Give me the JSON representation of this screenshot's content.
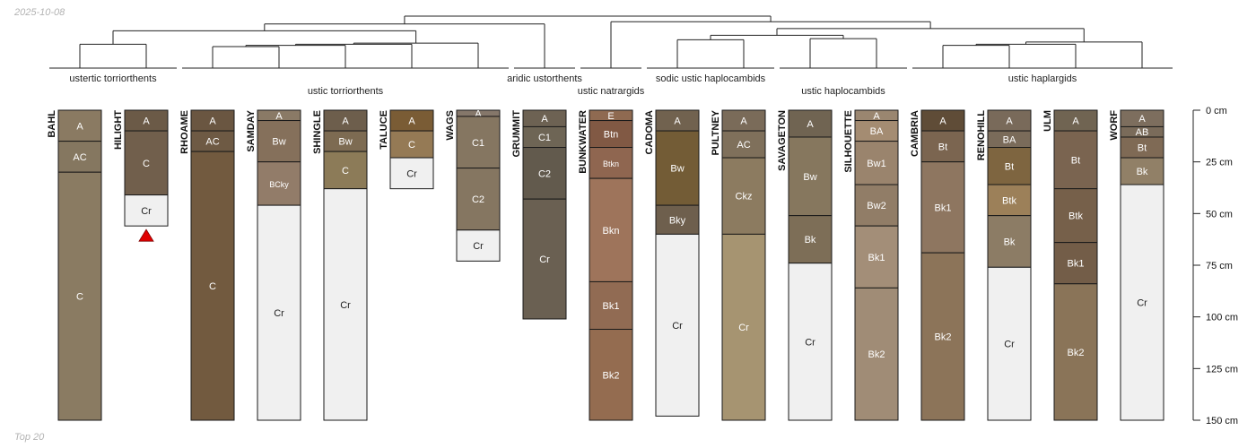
{
  "meta": {
    "date_stamp": "2025-10-08",
    "footer_note": "Top 20"
  },
  "chart_data": {
    "type": "soil-profile-sketch",
    "title": "",
    "depth_unit": "cm",
    "depth_range": [
      0,
      150
    ],
    "depth_ticks": [
      0,
      25,
      50,
      75,
      100,
      125,
      150
    ],
    "depth_tick_labels": [
      "0 cm",
      "25 cm",
      "50 cm",
      "75 cm",
      "100 cm",
      "125 cm",
      "150 cm"
    ],
    "group_labels": [
      {
        "text": "ustertic torriorthents",
        "members": [
          "BAHL",
          "HILIGHT"
        ]
      },
      {
        "text": "ustic torriorthents",
        "members": [
          "RHOAME",
          "SAMDAY",
          "SHINGLE",
          "TALUCE",
          "WAGS"
        ]
      },
      {
        "text": "aridic ustorthents",
        "members": [
          "GRUMMIT"
        ]
      },
      {
        "text": "ustic natrargids",
        "members": [
          "BUNKWATER"
        ]
      },
      {
        "text": "sodic ustic haplocambids",
        "members": [
          "CADOMA",
          "PULTNEY"
        ]
      },
      {
        "text": "ustic haplocambids",
        "members": [
          "SAVAGETON",
          "SILHOUETTE"
        ]
      },
      {
        "text": "ustic haplargids",
        "members": [
          "CAMBRIA",
          "RENOHILL",
          "ULM",
          "WORF"
        ]
      }
    ],
    "profiles": [
      {
        "name": "BAHL",
        "truncated": false,
        "horizons": [
          {
            "name": "A",
            "top": 0,
            "bottom": 15,
            "color": "#8a7a62"
          },
          {
            "name": "AC",
            "top": 15,
            "bottom": 30,
            "color": "#857760"
          },
          {
            "name": "C",
            "top": 30,
            "bottom": 150,
            "color": "#8a7b62"
          }
        ]
      },
      {
        "name": "HILIGHT",
        "truncated": true,
        "horizons": [
          {
            "name": "A",
            "top": 0,
            "bottom": 10,
            "color": "#6b5a47"
          },
          {
            "name": "C",
            "top": 10,
            "bottom": 41,
            "color": "#715f4c"
          },
          {
            "name": "Cr",
            "top": 41,
            "bottom": 56,
            "color": "#f0f0f0"
          }
        ]
      },
      {
        "name": "RHOAME",
        "truncated": false,
        "horizons": [
          {
            "name": "A",
            "top": 0,
            "bottom": 10,
            "color": "#6a5641"
          },
          {
            "name": "AC",
            "top": 10,
            "bottom": 20,
            "color": "#6e5a44"
          },
          {
            "name": "C",
            "top": 20,
            "bottom": 150,
            "color": "#725a3f"
          }
        ]
      },
      {
        "name": "SAMDAY",
        "truncated": false,
        "horizons": [
          {
            "name": "A",
            "top": 0,
            "bottom": 5,
            "color": "#8a7a66"
          },
          {
            "name": "Bw",
            "top": 5,
            "bottom": 25,
            "color": "#85705b"
          },
          {
            "name": "BCky",
            "top": 25,
            "bottom": 46,
            "color": "#927c69"
          },
          {
            "name": "Cr",
            "top": 46,
            "bottom": 150,
            "color": "#f0f0f0"
          }
        ]
      },
      {
        "name": "SHINGLE",
        "truncated": false,
        "horizons": [
          {
            "name": "A",
            "top": 0,
            "bottom": 10,
            "color": "#6d5e4c"
          },
          {
            "name": "Bw",
            "top": 10,
            "bottom": 20,
            "color": "#7d6b52"
          },
          {
            "name": "C",
            "top": 20,
            "bottom": 38,
            "color": "#8c7b58"
          },
          {
            "name": "Cr",
            "top": 38,
            "bottom": 150,
            "color": "#f0f0f0"
          }
        ]
      },
      {
        "name": "TALUCE",
        "truncated": false,
        "horizons": [
          {
            "name": "A",
            "top": 0,
            "bottom": 10,
            "color": "#7a5c35"
          },
          {
            "name": "C",
            "top": 10,
            "bottom": 23,
            "color": "#957a55"
          },
          {
            "name": "Cr",
            "top": 23,
            "bottom": 38,
            "color": "#f0f0f0"
          }
        ]
      },
      {
        "name": "WAGS",
        "truncated": false,
        "horizons": [
          {
            "name": "A",
            "top": 0,
            "bottom": 3,
            "color": "#85776a"
          },
          {
            "name": "C1",
            "top": 3,
            "bottom": 28,
            "color": "#857661"
          },
          {
            "name": "C2",
            "top": 28,
            "bottom": 58,
            "color": "#857661"
          },
          {
            "name": "Cr",
            "top": 58,
            "bottom": 73,
            "color": "#f0f0f0"
          }
        ]
      },
      {
        "name": "GRUMMIT",
        "truncated": false,
        "horizons": [
          {
            "name": "A",
            "top": 0,
            "bottom": 8,
            "color": "#6d6253"
          },
          {
            "name": "C1",
            "top": 8,
            "bottom": 18,
            "color": "#6e6555"
          },
          {
            "name": "C2",
            "top": 18,
            "bottom": 43,
            "color": "#625a4d"
          },
          {
            "name": "Cr",
            "top": 43,
            "bottom": 101,
            "color": "#6a6052"
          }
        ]
      },
      {
        "name": "BUNKWATER",
        "truncated": false,
        "horizons": [
          {
            "name": "E",
            "top": 0,
            "bottom": 5,
            "color": "#8f6a51"
          },
          {
            "name": "Btn",
            "top": 5,
            "bottom": 18,
            "color": "#815944"
          },
          {
            "name": "Btkn",
            "top": 18,
            "bottom": 33,
            "color": "#8f6650"
          },
          {
            "name": "Bkn",
            "top": 33,
            "bottom": 83,
            "color": "#9e745b"
          },
          {
            "name": "Bk1",
            "top": 83,
            "bottom": 106,
            "color": "#916b53"
          },
          {
            "name": "Bk2",
            "top": 106,
            "bottom": 150,
            "color": "#946c50"
          }
        ]
      },
      {
        "name": "CADOMA",
        "truncated": false,
        "horizons": [
          {
            "name": "A",
            "top": 0,
            "bottom": 10,
            "color": "#71624f"
          },
          {
            "name": "Bw",
            "top": 10,
            "bottom": 46,
            "color": "#735c36"
          },
          {
            "name": "Bky",
            "top": 46,
            "bottom": 60,
            "color": "#6e5f4d"
          },
          {
            "name": "Cr",
            "top": 60,
            "bottom": 148,
            "color": "#f0f0f0"
          }
        ]
      },
      {
        "name": "PULTNEY",
        "truncated": false,
        "horizons": [
          {
            "name": "A",
            "top": 0,
            "bottom": 10,
            "color": "#7a6b59"
          },
          {
            "name": "AC",
            "top": 10,
            "bottom": 23,
            "color": "#7f705b"
          },
          {
            "name": "Ckz",
            "top": 23,
            "bottom": 60,
            "color": "#8c7b60"
          },
          {
            "name": "Cr",
            "top": 60,
            "bottom": 150,
            "color": "#a69471"
          }
        ]
      },
      {
        "name": "SAVAGETON",
        "truncated": false,
        "horizons": [
          {
            "name": "A",
            "top": 0,
            "bottom": 13,
            "color": "#706452"
          },
          {
            "name": "Bw",
            "top": 13,
            "bottom": 51,
            "color": "#86775e"
          },
          {
            "name": "Bk",
            "top": 51,
            "bottom": 74,
            "color": "#7d6e57"
          },
          {
            "name": "Cr",
            "top": 74,
            "bottom": 150,
            "color": "#f0f0f0"
          }
        ]
      },
      {
        "name": "SILHOUETTE",
        "truncated": false,
        "horizons": [
          {
            "name": "A",
            "top": 0,
            "bottom": 5,
            "color": "#9a8670"
          },
          {
            "name": "BA",
            "top": 5,
            "bottom": 15,
            "color": "#a48c72"
          },
          {
            "name": "Bw1",
            "top": 15,
            "bottom": 36,
            "color": "#9a846d"
          },
          {
            "name": "Bw2",
            "top": 36,
            "bottom": 56,
            "color": "#917d67"
          },
          {
            "name": "Bk1",
            "top": 56,
            "bottom": 86,
            "color": "#a38e78"
          },
          {
            "name": "Bk2",
            "top": 86,
            "bottom": 150,
            "color": "#a08c76"
          }
        ]
      },
      {
        "name": "CAMBRIA",
        "truncated": false,
        "horizons": [
          {
            "name": "A",
            "top": 0,
            "bottom": 10,
            "color": "#5f4c37"
          },
          {
            "name": "Bt",
            "top": 10,
            "bottom": 25,
            "color": "#7b6550"
          },
          {
            "name": "Bk1",
            "top": 25,
            "bottom": 69,
            "color": "#8e7660"
          },
          {
            "name": "Bk2",
            "top": 69,
            "bottom": 150,
            "color": "#8c7459"
          }
        ]
      },
      {
        "name": "RENOHILL",
        "truncated": false,
        "horizons": [
          {
            "name": "A",
            "top": 0,
            "bottom": 10,
            "color": "#796a5a"
          },
          {
            "name": "BA",
            "top": 10,
            "bottom": 18,
            "color": "#7a6b5a"
          },
          {
            "name": "Bt",
            "top": 18,
            "bottom": 36,
            "color": "#7e6540"
          },
          {
            "name": "Btk",
            "top": 36,
            "bottom": 51,
            "color": "#9c8059"
          },
          {
            "name": "Bk",
            "top": 51,
            "bottom": 76,
            "color": "#8c7c65"
          },
          {
            "name": "Cr",
            "top": 76,
            "bottom": 150,
            "color": "#f0f0f0"
          }
        ]
      },
      {
        "name": "ULM",
        "truncated": false,
        "horizons": [
          {
            "name": "A",
            "top": 0,
            "bottom": 10,
            "color": "#706452"
          },
          {
            "name": "Bt",
            "top": 10,
            "bottom": 38,
            "color": "#7a6450"
          },
          {
            "name": "Btk",
            "top": 38,
            "bottom": 64,
            "color": "#76604a"
          },
          {
            "name": "Bk1",
            "top": 64,
            "bottom": 84,
            "color": "#735d48"
          },
          {
            "name": "Bk2",
            "top": 84,
            "bottom": 150,
            "color": "#8a7458"
          }
        ]
      },
      {
        "name": "WORF",
        "truncated": false,
        "horizons": [
          {
            "name": "A",
            "top": 0,
            "bottom": 8,
            "color": "#7d6e5e"
          },
          {
            "name": "AB",
            "top": 8,
            "bottom": 13,
            "color": "#7a6b5a"
          },
          {
            "name": "Bt",
            "top": 13,
            "bottom": 23,
            "color": "#7f6a55"
          },
          {
            "name": "Bk",
            "top": 23,
            "bottom": 36,
            "color": "#918067"
          },
          {
            "name": "Cr",
            "top": 36,
            "bottom": 150,
            "color": "#f0f0f0"
          }
        ]
      }
    ],
    "dendrogram": {
      "leaves": [
        "BAHL",
        "HILIGHT",
        "RHOAME",
        "SAMDAY",
        "SHINGLE",
        "TALUCE",
        "WAGS",
        "GRUMMIT",
        "BUNKWATER",
        "CADOMA",
        "PULTNEY",
        "SAVAGETON",
        "SILHOUETTE",
        "CAMBRIA",
        "RENOHILL",
        "ULM",
        "WORF"
      ],
      "merges": [
        {
          "a": "L:BAHL",
          "b": "L:HILIGHT",
          "height": 1.0
        },
        {
          "a": "L:RHOAME",
          "b": "L:SAMDAY",
          "height": 0.8
        },
        {
          "a": "M1",
          "b": "L:SHINGLE",
          "height": 0.9
        },
        {
          "a": "M2",
          "b": "L:TALUCE",
          "height": 1.0
        },
        {
          "a": "M3",
          "b": "L:WAGS",
          "height": 1.1
        },
        {
          "a": "M0",
          "b": "M4",
          "height": 2.2
        },
        {
          "a": "M5",
          "b": "L:GRUMMIT",
          "height": 2.8
        },
        {
          "a": "L:CADOMA",
          "b": "L:PULTNEY",
          "height": 1.4
        },
        {
          "a": "L:SAVAGETON",
          "b": "L:SILHOUETTE",
          "height": 1.5
        },
        {
          "a": "M7",
          "b": "M8",
          "height": 1.8
        },
        {
          "a": "L:CAMBRIA",
          "b": "L:RENOHILL",
          "height": 0.9
        },
        {
          "a": "M10",
          "b": "L:ULM",
          "height": 1.0
        },
        {
          "a": "M11",
          "b": "L:WORF",
          "height": 1.2
        },
        {
          "a": "M9",
          "b": "M12",
          "height": 2.4
        },
        {
          "a": "L:BUNKWATER",
          "b": "M13",
          "height": 3.0
        },
        {
          "a": "M6",
          "b": "M14",
          "height": 3.5
        }
      ]
    }
  }
}
